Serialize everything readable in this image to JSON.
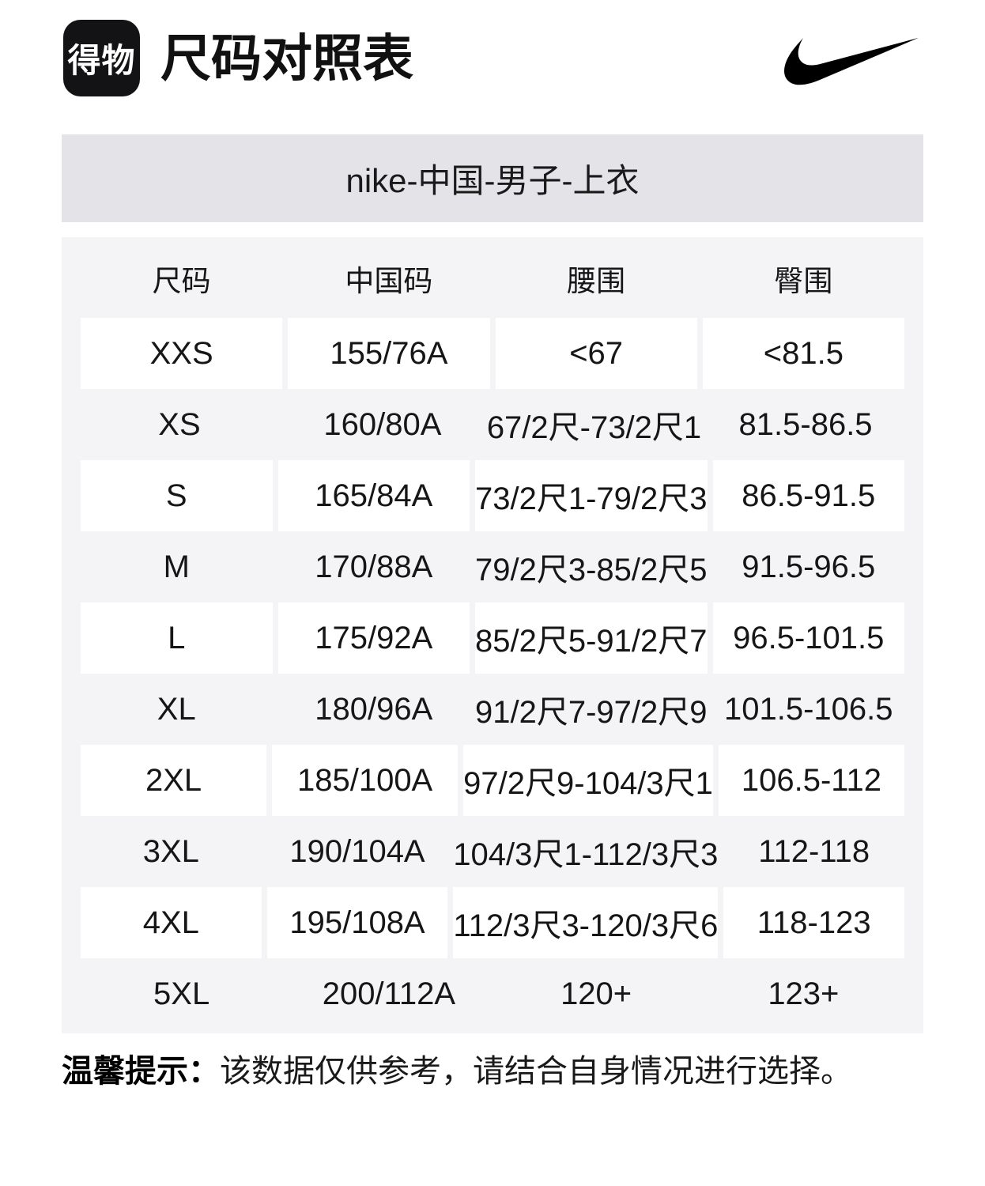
{
  "header": {
    "logo_text": "得物",
    "title": "尺码对照表"
  },
  "icons": {
    "app_logo": "dewu-logo",
    "brand": "nike-swoosh-icon"
  },
  "chart_data": {
    "type": "table",
    "title": "nike-中国-男子-上衣",
    "columns": [
      "尺码",
      "中国码",
      "腰围",
      "臀围"
    ],
    "rows": [
      [
        "XXS",
        "155/76A",
        "<67",
        "<81.5"
      ],
      [
        "XS",
        "160/80A",
        "67/2尺-73/2尺1",
        "81.5-86.5"
      ],
      [
        "S",
        "165/84A",
        "73/2尺1-79/2尺3",
        "86.5-91.5"
      ],
      [
        "M",
        "170/88A",
        "79/2尺3-85/2尺5",
        "91.5-96.5"
      ],
      [
        "L",
        "175/92A",
        "85/2尺5-91/2尺7",
        "96.5-101.5"
      ],
      [
        "XL",
        "180/96A",
        "91/2尺7-97/2尺9",
        "101.5-106.5"
      ],
      [
        "2XL",
        "185/100A",
        "97/2尺9-104/3尺1",
        "106.5-112"
      ],
      [
        "3XL",
        "190/104A",
        "104/3尺1-112/3尺3",
        "112-118"
      ],
      [
        "4XL",
        "195/108A",
        "112/3尺3-120/3尺6",
        "118-123"
      ],
      [
        "5XL",
        "200/112A",
        "120+",
        "123+"
      ]
    ]
  },
  "footer": {
    "label": "温馨提示：",
    "text": "该数据仅供参考，请结合自身情况进行选择。"
  },
  "colors": {
    "logo_bg": "#131316",
    "banner_bg": "#e3e3e8",
    "table_bg": "#f4f4f7",
    "row_box_bg": "#ffffff",
    "text": "#161616",
    "brand_black": "#000000"
  }
}
